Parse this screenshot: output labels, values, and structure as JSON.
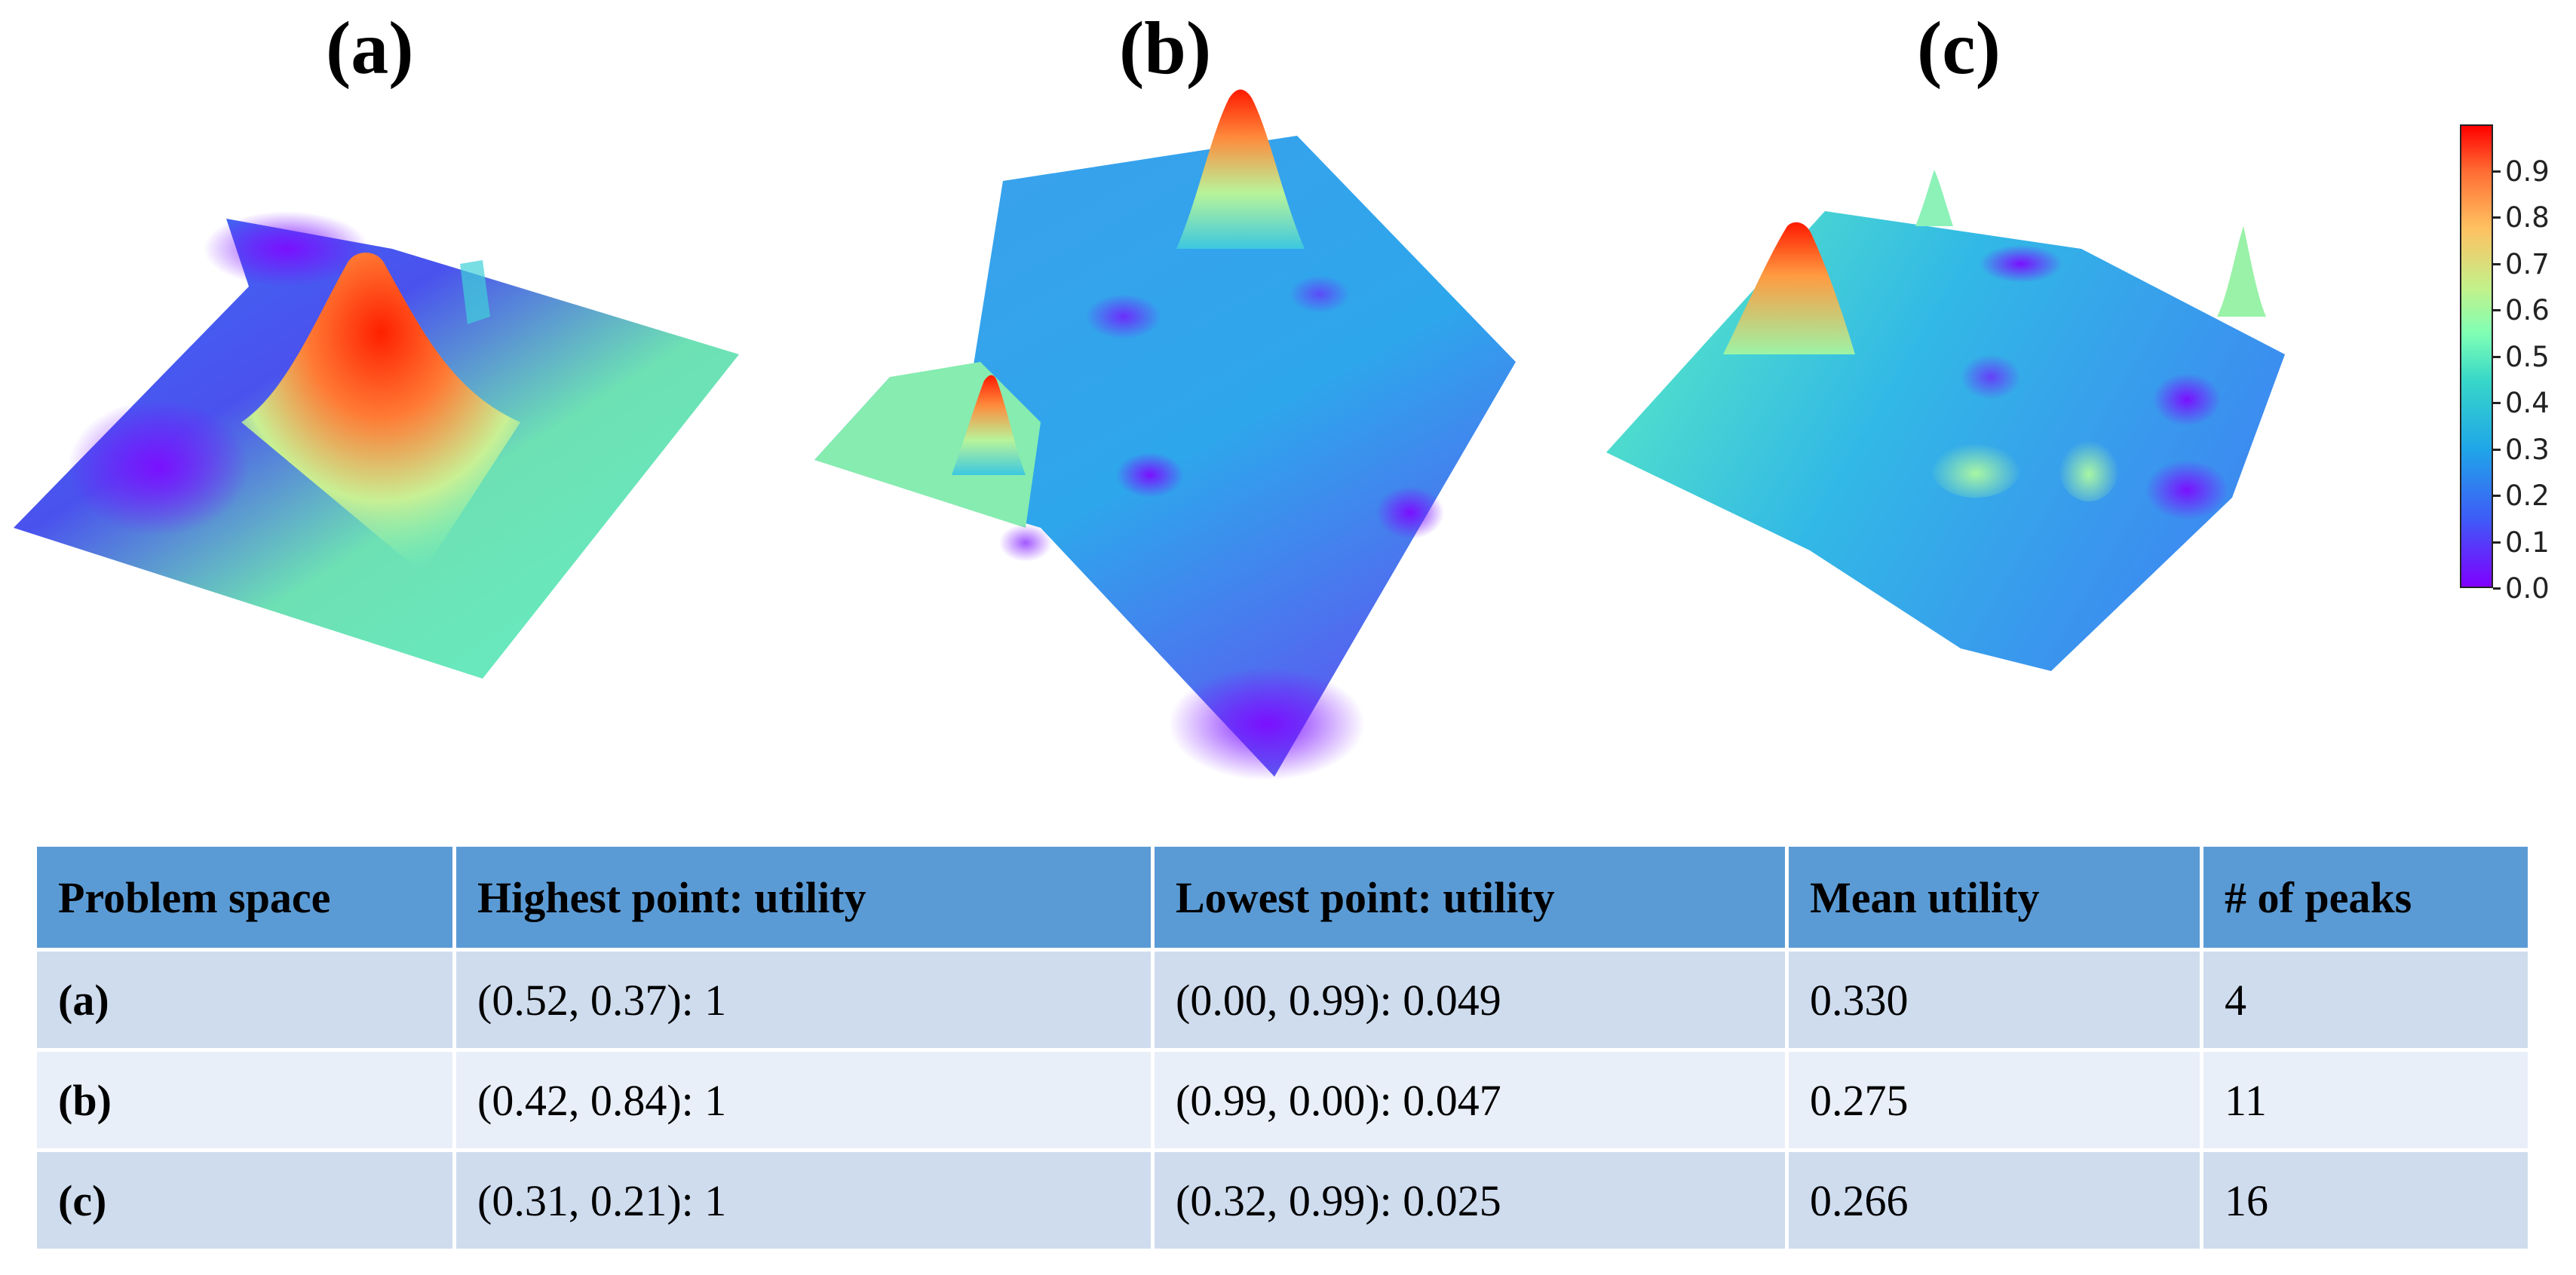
{
  "panels": [
    {
      "label": "(a)"
    },
    {
      "label": "(b)"
    },
    {
      "label": "(c)"
    }
  ],
  "colorbar": {
    "ticks": [
      "0.0",
      "0.1",
      "0.2",
      "0.3",
      "0.4",
      "0.5",
      "0.6",
      "0.7",
      "0.8",
      "0.9"
    ],
    "range": [
      0.0,
      1.0
    ],
    "colormap": "rainbow"
  },
  "chart_data": {
    "type": "table",
    "columns": [
      "Problem space",
      "Highest point: utility",
      "Lowest point: utility",
      "Mean utility",
      "# of peaks"
    ],
    "rows": [
      [
        "(a)",
        "(0.52, 0.37): 1",
        "(0.00, 0.99): 0.049",
        "0.330",
        "4"
      ],
      [
        "(b)",
        "(0.42, 0.84): 1",
        "(0.99, 0.00): 0.047",
        "0.275",
        "11"
      ],
      [
        "(c)",
        "(0.31, 0.21): 1",
        "(0.32, 0.99): 0.025",
        "0.266",
        "16"
      ]
    ]
  },
  "colors": {
    "header_bg": "#5b9bd5",
    "row_odd_bg": "#cfdcee",
    "row_even_bg": "#e9eff8"
  }
}
